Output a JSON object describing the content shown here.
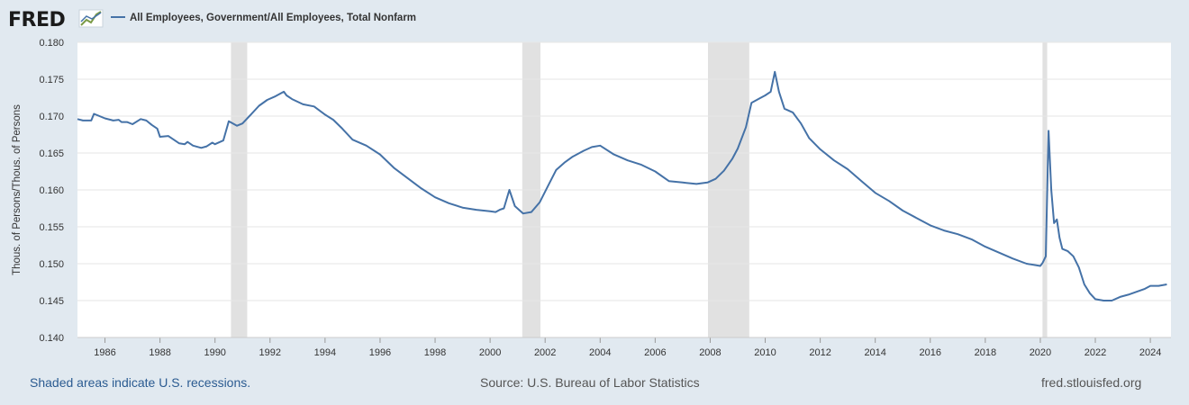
{
  "branding": {
    "logo_text": "FRED",
    "logo_icon": "fred-chart-logo-icon"
  },
  "colors": {
    "line": "#4572a7",
    "recession": "#e1e1e1",
    "background": "#e1e9f0",
    "plot_bg": "#ffffff",
    "grid": "#e6e6e6"
  },
  "footer": {
    "recession_note": "Shaded areas indicate U.S. recessions.",
    "source": "Source: U.S. Bureau of Labor Statistics",
    "site": "fred.stlouisfed.org"
  },
  "chart_data": {
    "type": "line",
    "title": "",
    "ylabel": "Thous. of Persons/Thous. of Persons",
    "xlabel": "",
    "xlim": [
      1985.0,
      2024.75
    ],
    "ylim": [
      0.14,
      0.18
    ],
    "y_ticks": [
      "0.140",
      "0.145",
      "0.150",
      "0.155",
      "0.160",
      "0.165",
      "0.170",
      "0.175",
      "0.180"
    ],
    "x_ticks": [
      "1986",
      "1988",
      "1990",
      "1992",
      "1994",
      "1996",
      "1998",
      "2000",
      "2002",
      "2004",
      "2006",
      "2008",
      "2010",
      "2012",
      "2014",
      "2016",
      "2018",
      "2020",
      "2022",
      "2024"
    ],
    "grid": true,
    "legend_position": "top-left",
    "recessions": [
      [
        1990.58,
        1991.17
      ],
      [
        2001.17,
        2001.83
      ],
      [
        2007.92,
        2009.42
      ],
      [
        2020.08,
        2020.25
      ]
    ],
    "series": [
      {
        "name": "All Employees, Government/All Employees, Total Nonfarm",
        "x": [
          1985.0,
          1985.2,
          1985.5,
          1985.6,
          1986.0,
          1986.3,
          1986.5,
          1986.6,
          1986.8,
          1987.0,
          1987.3,
          1987.5,
          1987.7,
          1987.9,
          1988.0,
          1988.3,
          1988.5,
          1988.7,
          1988.9,
          1989.0,
          1989.2,
          1989.5,
          1989.7,
          1989.9,
          1990.0,
          1990.3,
          1990.5,
          1990.6,
          1990.8,
          1991.0,
          1991.3,
          1991.6,
          1991.9,
          1992.2,
          1992.5,
          1992.6,
          1992.8,
          1993.2,
          1993.6,
          1994.0,
          1994.3,
          1994.6,
          1995.0,
          1995.5,
          1996.0,
          1996.5,
          1997.0,
          1997.5,
          1998.0,
          1998.5,
          1999.0,
          1999.5,
          2000.0,
          2000.2,
          2000.35,
          2000.5,
          2000.7,
          2000.9,
          2001.2,
          2001.5,
          2001.8,
          2002.1,
          2002.4,
          2002.7,
          2003.0,
          2003.4,
          2003.7,
          2004.0,
          2004.5,
          2005.0,
          2005.5,
          2006.0,
          2006.5,
          2007.0,
          2007.5,
          2007.9,
          2008.2,
          2008.5,
          2008.8,
          2009.0,
          2009.3,
          2009.5,
          2009.8,
          2010.0,
          2010.2,
          2010.35,
          2010.5,
          2010.7,
          2011.0,
          2011.3,
          2011.6,
          2012.0,
          2012.5,
          2013.0,
          2013.5,
          2014.0,
          2014.5,
          2015.0,
          2015.5,
          2016.0,
          2016.5,
          2017.0,
          2017.5,
          2018.0,
          2018.5,
          2019.0,
          2019.5,
          2020.0,
          2020.08,
          2020.2,
          2020.3,
          2020.4,
          2020.5,
          2020.6,
          2020.7,
          2020.8,
          2021.0,
          2021.2,
          2021.4,
          2021.6,
          2021.8,
          2022.0,
          2022.3,
          2022.6,
          2022.9,
          2023.2,
          2023.5,
          2023.8,
          2024.0,
          2024.3,
          2024.6
        ],
        "values": [
          0.1696,
          0.1694,
          0.1694,
          0.1703,
          0.1697,
          0.1694,
          0.1695,
          0.1692,
          0.1692,
          0.1689,
          0.1696,
          0.1694,
          0.1688,
          0.1683,
          0.1672,
          0.1673,
          0.1668,
          0.1663,
          0.1662,
          0.1665,
          0.166,
          0.1657,
          0.1659,
          0.1664,
          0.1662,
          0.1667,
          0.1693,
          0.1691,
          0.1687,
          0.169,
          0.1702,
          0.1714,
          0.1722,
          0.1727,
          0.1733,
          0.1728,
          0.1723,
          0.1716,
          0.1713,
          0.1702,
          0.1695,
          0.1684,
          0.1668,
          0.166,
          0.1648,
          0.163,
          0.1616,
          0.1602,
          0.159,
          0.1582,
          0.1576,
          0.1573,
          0.1571,
          0.157,
          0.1573,
          0.1575,
          0.16,
          0.1578,
          0.1568,
          0.157,
          0.1583,
          0.1605,
          0.1627,
          0.1637,
          0.1645,
          0.1653,
          0.1658,
          0.166,
          0.1648,
          0.164,
          0.1634,
          0.1625,
          0.1612,
          0.161,
          0.1608,
          0.161,
          0.1615,
          0.1626,
          0.1642,
          0.1656,
          0.1685,
          0.1718,
          0.1724,
          0.1728,
          0.1733,
          0.176,
          0.1733,
          0.171,
          0.1705,
          0.169,
          0.167,
          0.1655,
          0.164,
          0.1628,
          0.1612,
          0.1596,
          0.1585,
          0.1572,
          0.1562,
          0.1552,
          0.1545,
          0.154,
          0.1533,
          0.1523,
          0.1515,
          0.1507,
          0.15,
          0.1497,
          0.1501,
          0.151,
          0.168,
          0.16,
          0.1555,
          0.156,
          0.1535,
          0.152,
          0.1517,
          0.151,
          0.1495,
          0.1472,
          0.146,
          0.1452,
          0.145,
          0.145,
          0.1455,
          0.1458,
          0.1462,
          0.1466,
          0.147,
          0.147,
          0.1472
        ]
      }
    ]
  }
}
